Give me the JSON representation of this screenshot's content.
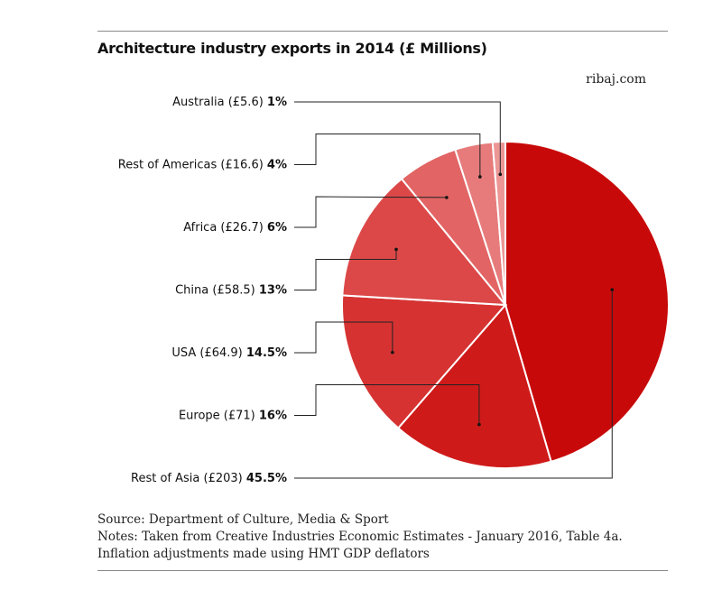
{
  "header": {
    "title": "Architecture industry exports in 2014 (£ Millions)",
    "credit": "ribaj.com"
  },
  "chart_data": {
    "type": "pie",
    "title": "Architecture industry exports in 2014 (£ Millions)",
    "unit": "£ Millions",
    "slices": [
      {
        "label": "Rest of Asia",
        "value": 203,
        "value_text": "£203",
        "percent": 45.5,
        "percent_text": "45.5%",
        "color": "#c8090a"
      },
      {
        "label": "Europe",
        "value": 71,
        "value_text": "£71",
        "percent": 16,
        "percent_text": "16%",
        "color": "#cf1a1a"
      },
      {
        "label": "USA",
        "value": 64.9,
        "value_text": "£64.9",
        "percent": 14.5,
        "percent_text": "14.5%",
        "color": "#d63232"
      },
      {
        "label": "China",
        "value": 58.5,
        "value_text": "£58.5",
        "percent": 13,
        "percent_text": "13%",
        "color": "#dc4848"
      },
      {
        "label": "Africa",
        "value": 26.7,
        "value_text": "£26.7",
        "percent": 6,
        "percent_text": "6%",
        "color": "#e26464"
      },
      {
        "label": "Rest of Americas",
        "value": 16.6,
        "value_text": "£16.6",
        "percent": 4,
        "percent_text": "4%",
        "color": "#e77b7b"
      },
      {
        "label": "Australia",
        "value": 5.6,
        "value_text": "£5.6",
        "percent": 1,
        "percent_text": "1%",
        "color": "#ec9696"
      }
    ]
  },
  "footer": {
    "source": "Source: Department of Culture, Media & Sport",
    "notes": "Notes: Taken from Creative Industries Economic Estimates - January 2016, Table 4a.",
    "inflation": "Inflation adjustments made using HMT GDP deflators"
  }
}
